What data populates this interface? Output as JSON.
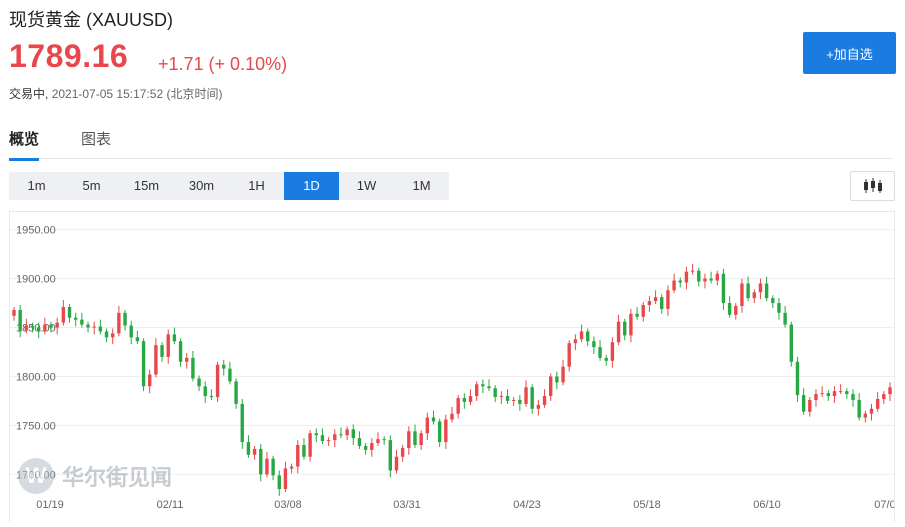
{
  "header": {
    "title": "现货黄金 (XAUUSD)",
    "price": "1789.16",
    "change": "+1.71 (+ 0.10%)",
    "status_label": "交易中,",
    "timestamp": "2021-07-05 15:17:52 (北京时间)",
    "add_button": "+加自选"
  },
  "tabs": [
    {
      "label": "概览",
      "active": true
    },
    {
      "label": "图表",
      "active": false
    }
  ],
  "timeframes": [
    {
      "label": "1m",
      "active": false
    },
    {
      "label": "5m",
      "active": false
    },
    {
      "label": "15m",
      "active": false
    },
    {
      "label": "30m",
      "active": false
    },
    {
      "label": "1H",
      "active": false
    },
    {
      "label": "1D",
      "active": true
    },
    {
      "label": "1W",
      "active": false
    },
    {
      "label": "1M",
      "active": false
    }
  ],
  "chart_type_icon": "candlestick-icon",
  "watermark": "华尔街见闻",
  "colors": {
    "up": "#e8474b",
    "down": "#27a844",
    "accent": "#1a7ce0"
  },
  "chart_data": {
    "type": "candlestick",
    "y_ticks": [
      "1700.00",
      "1750.00",
      "1800.00",
      "1850.00",
      "1900.00",
      "1950.00"
    ],
    "ylim": [
      1682,
      1968
    ],
    "x_ticks": [
      "01/19",
      "02/11",
      "03/08",
      "03/31",
      "04/23",
      "05/18",
      "06/10",
      "07/0"
    ],
    "closes": [
      1868,
      1847,
      1852,
      1850,
      1846,
      1853,
      1850,
      1855,
      1871,
      1860,
      1858,
      1853,
      1850,
      1851,
      1846,
      1840,
      1844,
      1865,
      1852,
      1840,
      1836,
      1790,
      1802,
      1832,
      1820,
      1843,
      1836,
      1815,
      1819,
      1798,
      1790,
      1780,
      1779,
      1812,
      1808,
      1795,
      1772,
      1733,
      1720,
      1726,
      1700,
      1716,
      1699,
      1685,
      1706,
      1708,
      1730,
      1718,
      1742,
      1740,
      1734,
      1735,
      1741,
      1740,
      1746,
      1737,
      1729,
      1725,
      1732,
      1736,
      1735,
      1704,
      1718,
      1727,
      1744,
      1730,
      1742,
      1758,
      1754,
      1733,
      1756,
      1762,
      1778,
      1774,
      1780,
      1792,
      1790,
      1788,
      1779,
      1780,
      1775,
      1776,
      1772,
      1789,
      1767,
      1771,
      1780,
      1800,
      1794,
      1810,
      1834,
      1838,
      1846,
      1836,
      1830,
      1819,
      1816,
      1835,
      1856,
      1842,
      1864,
      1861,
      1873,
      1877,
      1881,
      1869,
      1888,
      1898,
      1896,
      1907,
      1908,
      1897,
      1900,
      1898,
      1905,
      1875,
      1863,
      1872,
      1895,
      1880,
      1886,
      1895,
      1880,
      1875,
      1865,
      1853,
      1815,
      1781,
      1764,
      1776,
      1782,
      1783,
      1780,
      1785,
      1785,
      1782,
      1776,
      1758,
      1762,
      1767,
      1777,
      1782,
      1789
    ]
  }
}
